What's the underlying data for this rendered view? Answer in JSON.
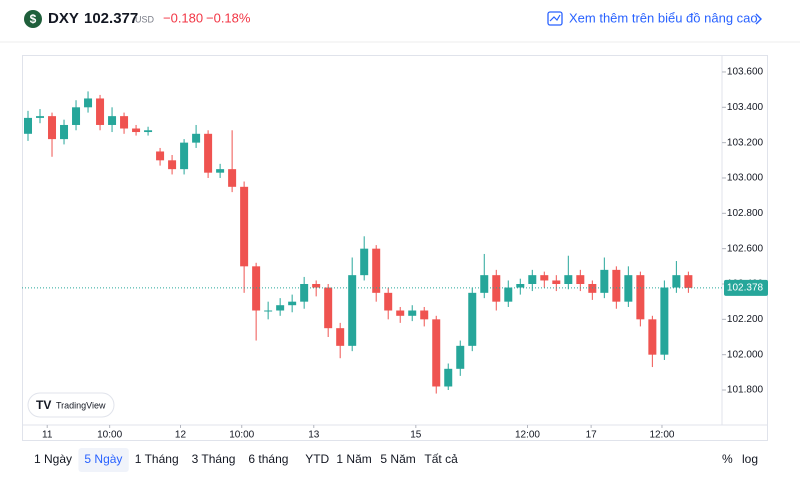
{
  "header": {
    "symbol": "DXY",
    "price": "102.377",
    "currency": "USD",
    "change": "−0.180",
    "change_pct": "−0.18%",
    "link": "Xem thêm trên biểu đồ nâng cao"
  },
  "chart_data": {
    "type": "candlestick",
    "brand": "TradingView",
    "up_color": "#26a69a",
    "down_color": "#ef5350",
    "x": [
      0,
      1,
      2,
      3,
      4,
      5,
      6,
      7,
      8,
      9,
      10,
      11,
      12,
      13,
      14,
      15,
      16,
      17,
      18,
      19,
      20,
      21,
      22,
      23,
      24,
      25,
      26,
      27,
      28,
      29,
      30,
      31,
      32,
      33,
      34,
      35,
      36,
      37,
      38,
      39,
      40,
      41,
      42,
      43,
      44,
      45,
      46,
      47,
      48,
      49,
      50,
      51,
      52,
      53,
      54,
      55
    ],
    "open": [
      103.25,
      103.34,
      103.35,
      103.22,
      103.3,
      103.4,
      103.45,
      103.3,
      103.35,
      103.28,
      103.26,
      103.15,
      103.1,
      103.05,
      103.2,
      103.25,
      103.03,
      103.05,
      102.95,
      102.5,
      102.25,
      102.25,
      102.28,
      102.3,
      102.4,
      102.38,
      102.15,
      102.05,
      102.45,
      102.6,
      102.35,
      102.25,
      102.22,
      102.25,
      102.2,
      101.82,
      101.92,
      102.05,
      102.35,
      102.45,
      102.3,
      102.38,
      102.4,
      102.45,
      102.42,
      102.4,
      102.45,
      102.4,
      102.35,
      102.48,
      102.3,
      102.45,
      102.2,
      102.0,
      102.38,
      102.45
    ],
    "high": [
      103.38,
      103.39,
      103.37,
      103.33,
      103.44,
      103.49,
      103.47,
      103.4,
      103.37,
      103.3,
      103.29,
      103.17,
      103.13,
      103.22,
      103.3,
      103.27,
      103.08,
      103.27,
      102.98,
      102.52,
      102.3,
      102.32,
      102.34,
      102.44,
      102.42,
      102.4,
      102.18,
      102.55,
      102.67,
      102.62,
      102.38,
      102.27,
      102.28,
      102.27,
      102.22,
      101.95,
      102.08,
      102.38,
      102.57,
      102.48,
      102.42,
      102.43,
      102.48,
      102.47,
      102.45,
      102.56,
      102.48,
      102.42,
      102.55,
      102.5,
      102.5,
      102.47,
      102.22,
      102.42,
      102.53,
      102.47
    ],
    "low": [
      103.21,
      103.31,
      103.12,
      103.19,
      103.27,
      103.37,
      103.27,
      103.26,
      103.25,
      103.24,
      103.24,
      103.07,
      103.02,
      103.02,
      103.17,
      103.0,
      103.0,
      102.92,
      102.35,
      102.08,
      102.2,
      102.22,
      102.24,
      102.26,
      102.33,
      102.1,
      101.98,
      102.02,
      102.42,
      102.3,
      102.2,
      102.18,
      102.19,
      102.16,
      101.78,
      101.8,
      101.88,
      102.02,
      102.32,
      102.25,
      102.27,
      102.34,
      102.36,
      102.38,
      102.36,
      102.37,
      102.36,
      102.31,
      102.32,
      102.26,
      102.27,
      102.16,
      101.93,
      101.97,
      102.35,
      102.35
    ],
    "close": [
      103.34,
      103.35,
      103.22,
      103.3,
      103.4,
      103.45,
      103.3,
      103.35,
      103.28,
      103.26,
      103.27,
      103.1,
      103.05,
      103.2,
      103.25,
      103.03,
      103.05,
      102.95,
      102.5,
      102.25,
      102.25,
      102.28,
      102.3,
      102.4,
      102.38,
      102.15,
      102.05,
      102.45,
      102.6,
      102.35,
      102.25,
      102.22,
      102.25,
      102.2,
      101.82,
      101.92,
      102.05,
      102.35,
      102.45,
      102.3,
      102.38,
      102.4,
      102.45,
      102.42,
      102.4,
      102.45,
      102.4,
      102.35,
      102.48,
      102.3,
      102.45,
      102.2,
      102.0,
      102.38,
      102.45,
      102.378
    ],
    "xlim": [
      -0.5,
      57.8
    ],
    "xticks": [
      {
        "value": 1.6,
        "label": "11"
      },
      {
        "value": 6.8,
        "label": "10:00"
      },
      {
        "value": 12.7,
        "label": "12"
      },
      {
        "value": 17.8,
        "label": "10:00"
      },
      {
        "value": 23.8,
        "label": "13"
      },
      {
        "value": 32.3,
        "label": "15"
      },
      {
        "value": 41.6,
        "label": "12:00"
      },
      {
        "value": 46.9,
        "label": "17"
      },
      {
        "value": 52.8,
        "label": "12:00"
      }
    ],
    "ylim": [
      101.602,
      103.696
    ],
    "yticks": [
      {
        "value": 101.8,
        "label": "101.800"
      },
      {
        "value": 102,
        "label": "102.000"
      },
      {
        "value": 102.2,
        "label": "102.200"
      },
      {
        "value": 102.4,
        "label": "102.400"
      },
      {
        "value": 102.6,
        "label": "102.600"
      },
      {
        "value": 102.8,
        "label": "102.800"
      },
      {
        "value": 103,
        "label": "103.000"
      },
      {
        "value": 103.2,
        "label": "103.200"
      },
      {
        "value": 103.4,
        "label": "103.400"
      },
      {
        "value": 103.6,
        "label": "103.600"
      }
    ],
    "last_price": {
      "value": 102.378,
      "label": "102.378"
    }
  },
  "controls": {
    "ranges": [
      "1 Ngày",
      "5 Ngày",
      "1 Tháng",
      "3 Tháng",
      "6 tháng",
      "YTD",
      "1 Năm",
      "5 Năm",
      "Tất cả"
    ],
    "selected": 1,
    "percent": "%",
    "log": "log"
  }
}
